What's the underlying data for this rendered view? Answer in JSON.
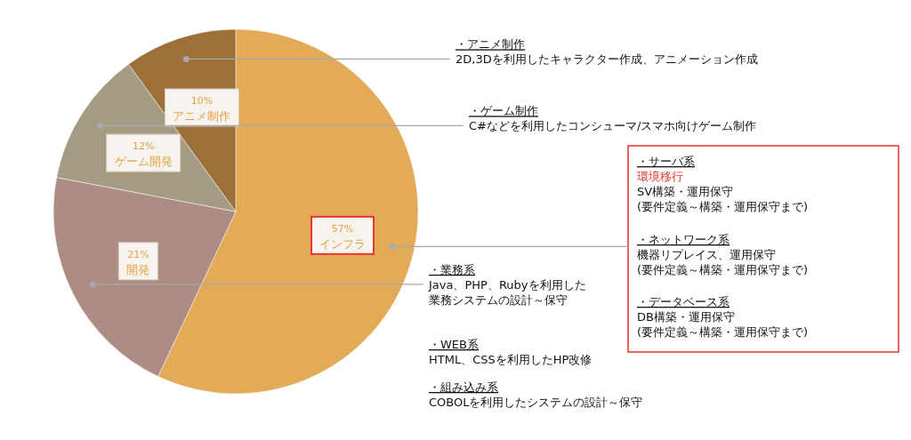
{
  "chart_data": {
    "type": "pie",
    "categories": [
      "インフラ",
      "開発",
      "ゲーム開発",
      "アニメ制作"
    ],
    "values": [
      57,
      21,
      12,
      10
    ],
    "colors": [
      "#e3aa57",
      "#ad8d83",
      "#a49c82",
      "#9c7038"
    ],
    "value_labels": [
      "57%",
      "21%",
      "12%",
      "10%"
    ],
    "annotations": [
      "・アニメ制作",
      "2D,3Dを利用したキャラクター作成、アニメーション作成",
      "・ゲーム制作",
      "C#などを利用したコンシューマ/スマホ向けゲーム制作",
      "・サーバ系",
      "環境移行",
      "SV構築・運用保守",
      "(要件定義～構築・運用保守まで)",
      "・ネットワーク系",
      "機器リプレイス、運用保守",
      "(要件定義～構築・運用保守まで)",
      "・データベース系",
      "DB構築・運用保守",
      "(要件定義～構築・運用保守まで)",
      "・業務系",
      "Java、PHP、Rubyを利用した",
      "業務システムの設計～保守",
      "・WEB系",
      "HTML、CSSを利用したHP改修",
      "・組み込み系",
      "COBOLを利用したシステムの設計～保守"
    ]
  }
}
